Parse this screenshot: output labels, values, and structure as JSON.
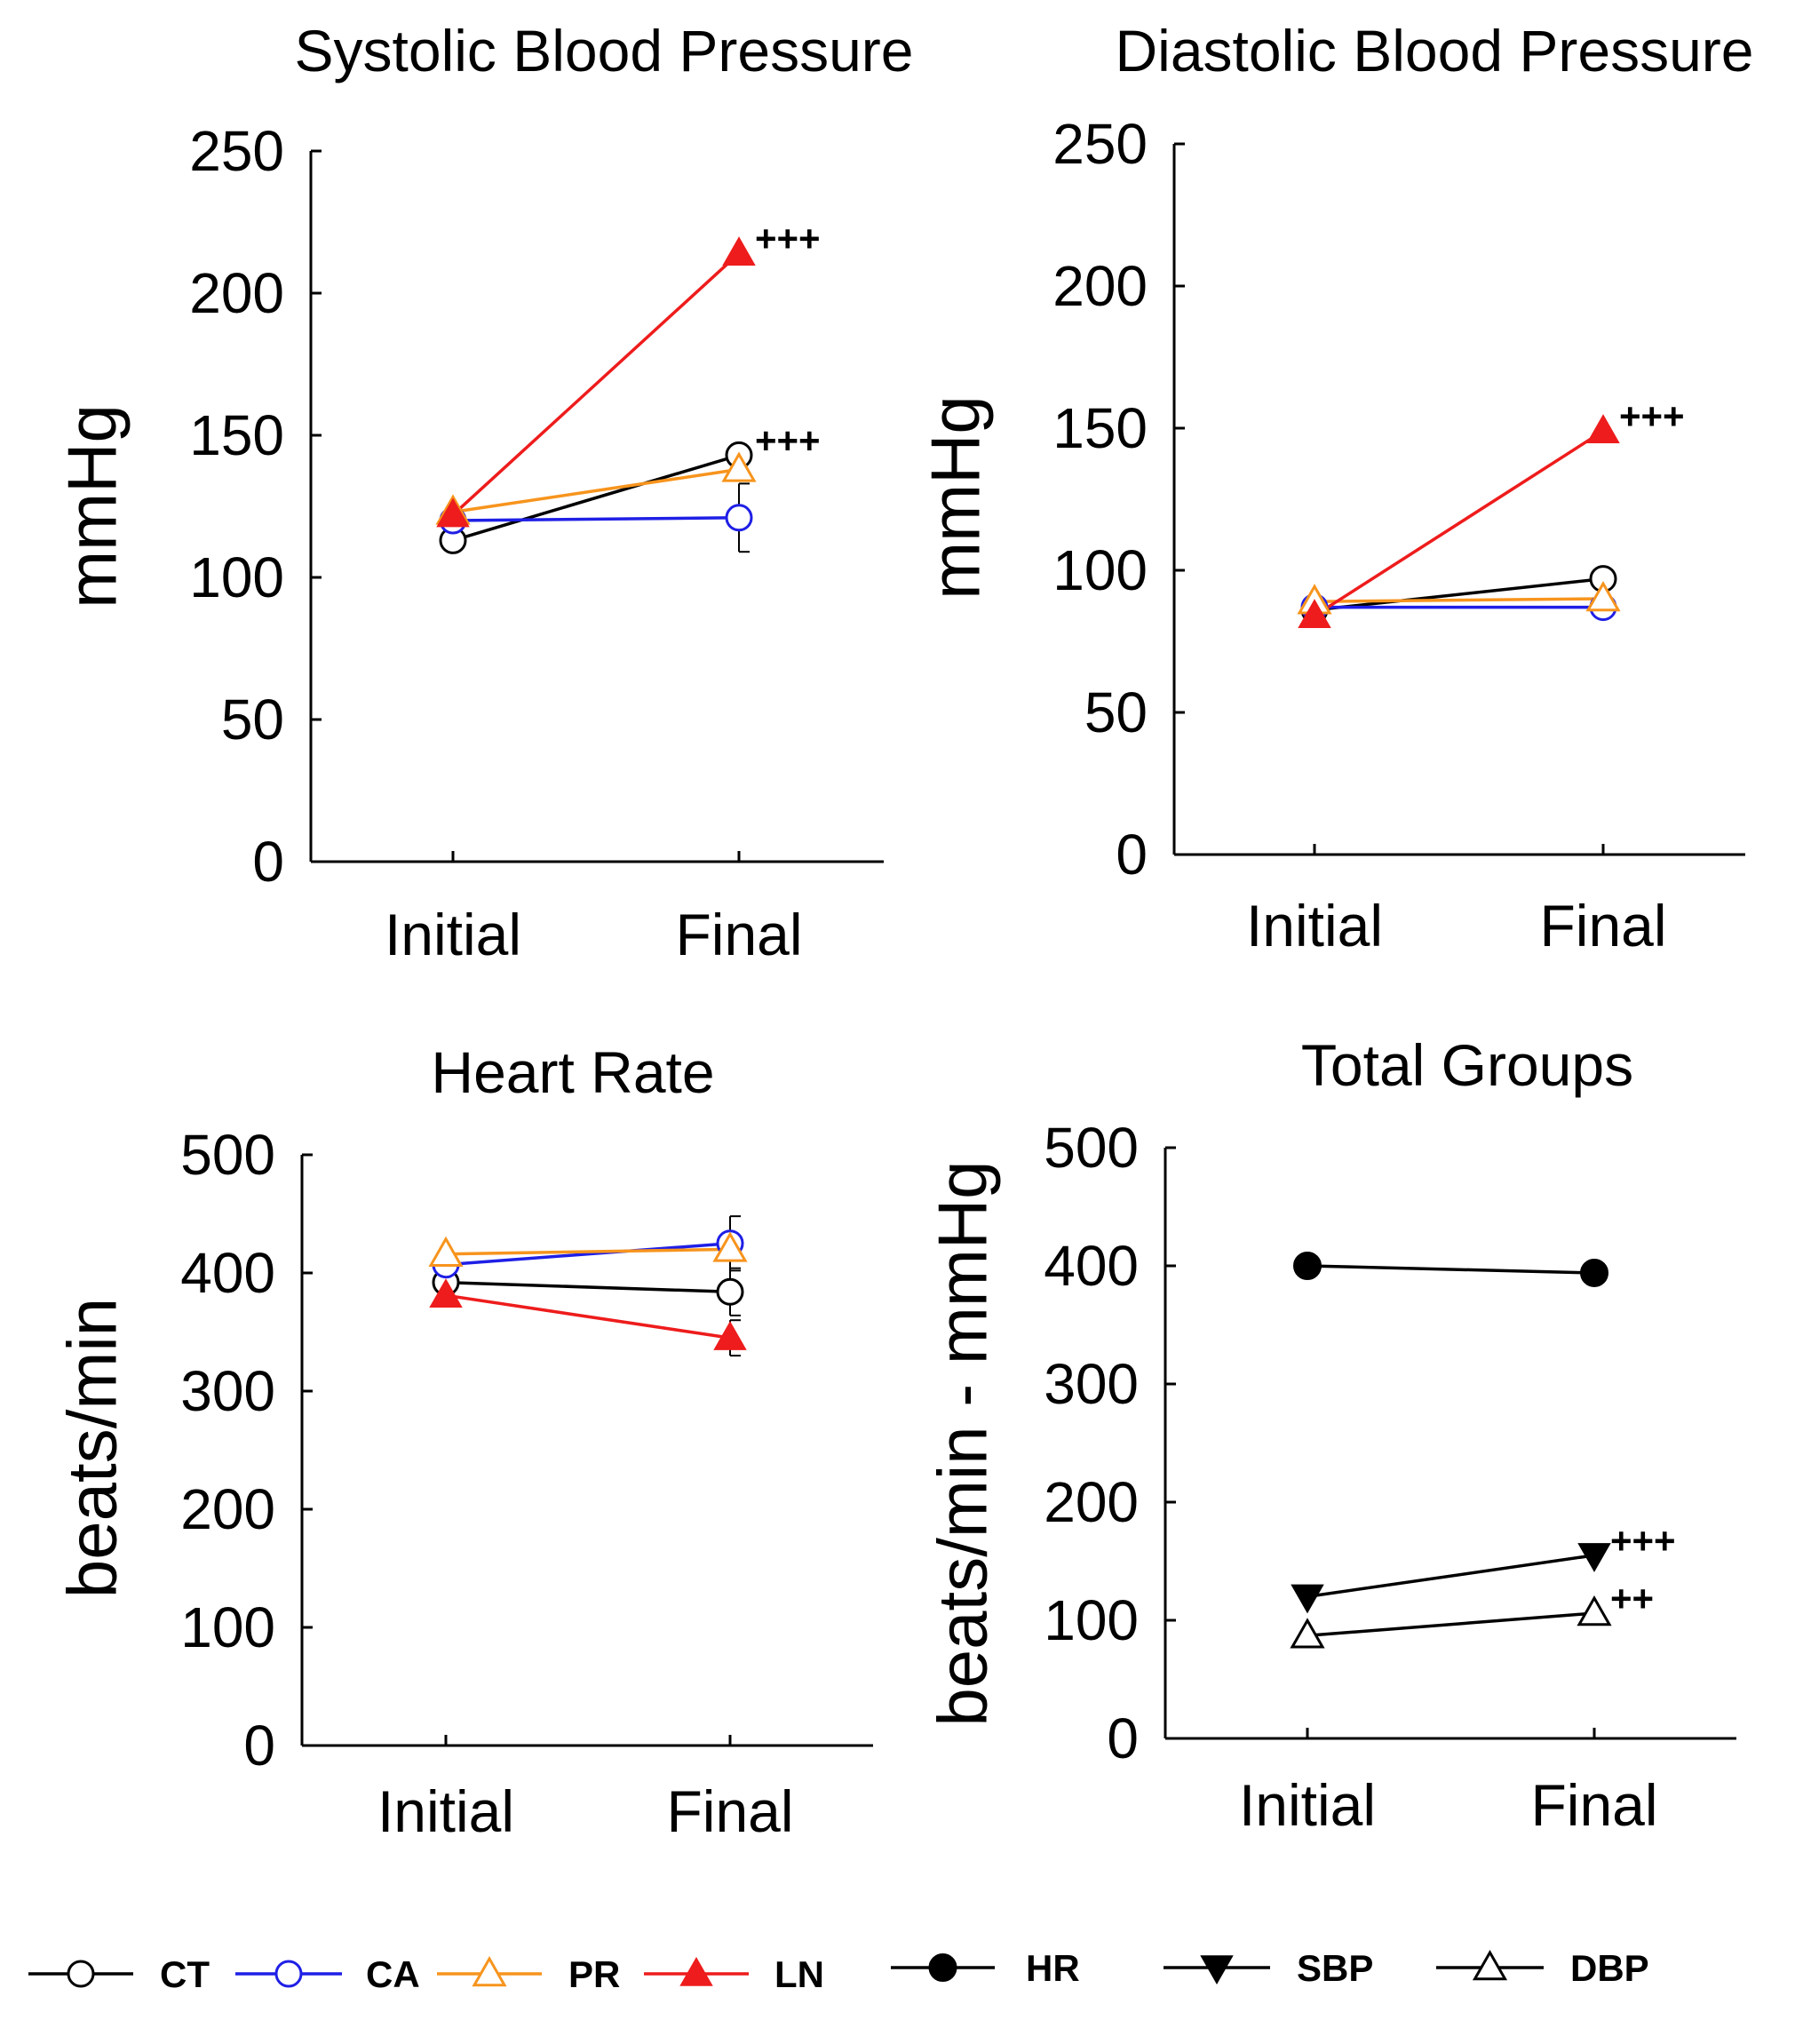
{
  "chart_data": [
    {
      "id": "sbp",
      "type": "line",
      "title": "Systolic Blood Pressure",
      "ylabel": "mmHg",
      "xlabel": "",
      "categories": [
        "Initial",
        "Final"
      ],
      "ylim": [
        0,
        250
      ],
      "yticks": [
        "0",
        "50",
        "100",
        "150",
        "200",
        "250"
      ],
      "series": [
        {
          "name": "CT",
          "values": [
            113,
            143
          ],
          "errors": [
            0,
            0
          ]
        },
        {
          "name": "CA",
          "values": [
            120,
            121
          ],
          "errors": [
            0,
            12
          ]
        },
        {
          "name": "PR",
          "values": [
            123,
            138
          ],
          "errors": [
            0,
            0
          ]
        },
        {
          "name": "LN",
          "values": [
            122,
            214
          ],
          "errors": [
            0,
            0
          ]
        }
      ],
      "annotations": [
        {
          "text": "+++",
          "series": "LN",
          "category": "Final"
        },
        {
          "text": "+++",
          "series": "CT",
          "category": "Final"
        }
      ]
    },
    {
      "id": "dbp",
      "type": "line",
      "title": "Diastolic Blood Pressure",
      "ylabel": "mmHg",
      "xlabel": "",
      "categories": [
        "Initial",
        "Final"
      ],
      "ylim": [
        0,
        250
      ],
      "yticks": [
        "0",
        "50",
        "100",
        "150",
        "200",
        "250"
      ],
      "series": [
        {
          "name": "CT",
          "values": [
            86,
            97
          ],
          "errors": [
            0,
            0
          ]
        },
        {
          "name": "CA",
          "values": [
            87,
            87
          ],
          "errors": [
            0,
            0
          ]
        },
        {
          "name": "PR",
          "values": [
            89,
            90
          ],
          "errors": [
            0,
            0
          ]
        },
        {
          "name": "LN",
          "values": [
            84,
            149
          ],
          "errors": [
            0,
            0
          ]
        }
      ],
      "annotations": [
        {
          "text": "+++",
          "series": "LN",
          "category": "Final"
        }
      ]
    },
    {
      "id": "hr",
      "type": "line",
      "title": "Heart Rate",
      "ylabel": "beats/min",
      "xlabel": "",
      "categories": [
        "Initial",
        "Final"
      ],
      "ylim": [
        0,
        500
      ],
      "yticks": [
        "0",
        "100",
        "200",
        "300",
        "400",
        "500"
      ],
      "series": [
        {
          "name": "CT",
          "values": [
            392,
            384
          ],
          "errors": [
            0,
            20
          ]
        },
        {
          "name": "CA",
          "values": [
            407,
            425
          ],
          "errors": [
            0,
            23
          ]
        },
        {
          "name": "PR",
          "values": [
            416,
            420
          ],
          "errors": [
            0,
            0
          ]
        },
        {
          "name": "LN",
          "values": [
            381,
            345
          ],
          "errors": [
            0,
            15
          ]
        }
      ],
      "annotations": []
    },
    {
      "id": "total",
      "type": "line",
      "title": "Total Groups",
      "ylabel": "beats/min - mmHg",
      "xlabel": "",
      "categories": [
        "Initial",
        "Final"
      ],
      "ylim": [
        0,
        500
      ],
      "yticks": [
        "0",
        "100",
        "200",
        "300",
        "400",
        "500"
      ],
      "series": [
        {
          "name": "HR",
          "values": [
            400,
            394
          ],
          "errors": [
            0,
            0
          ]
        },
        {
          "name": "SBP",
          "values": [
            120,
            155
          ],
          "errors": [
            0,
            0
          ]
        },
        {
          "name": "DBP",
          "values": [
            87,
            106
          ],
          "errors": [
            0,
            0
          ]
        }
      ],
      "annotations": [
        {
          "text": "+++",
          "series": "SBP",
          "category": "Final"
        },
        {
          "text": "++",
          "series": "DBP",
          "category": "Final"
        }
      ]
    }
  ],
  "series_styles": {
    "CT": {
      "color": "#000000",
      "marker": "circle-open"
    },
    "CA": {
      "color": "#1f1fe6",
      "marker": "circle-open"
    },
    "PR": {
      "color": "#f7941d",
      "marker": "triangle-up-open"
    },
    "LN": {
      "color": "#ee1c1c",
      "marker": "triangle-up-filled"
    },
    "HR": {
      "color": "#000000",
      "marker": "circle-filled"
    },
    "SBP": {
      "color": "#000000",
      "marker": "triangle-down-filled"
    },
    "DBP": {
      "color": "#000000",
      "marker": "triangle-up-open"
    }
  },
  "legend": {
    "entries": [
      "CT",
      "CA",
      "PR",
      "LN",
      "HR",
      "SBP",
      "DBP"
    ]
  }
}
